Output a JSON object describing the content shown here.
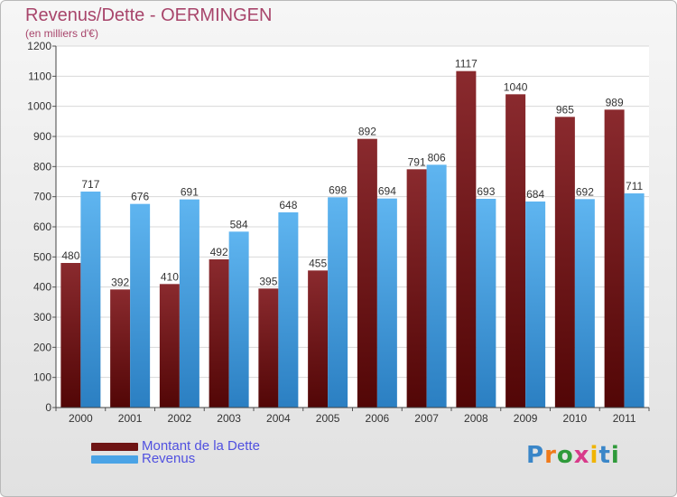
{
  "header": {
    "title": "Revenus/Dette - OERMINGEN",
    "subtitle": "(en milliers d'€)"
  },
  "colors": {
    "dette": "#6e1414",
    "revenus": "#4aa3e6",
    "title": "#a8456b",
    "legend_text": "#5050e0"
  },
  "chart_data": {
    "type": "bar",
    "title": "Revenus/Dette - OERMINGEN",
    "subtitle": "(en milliers d'€)",
    "categories": [
      "2000",
      "2001",
      "2002",
      "2003",
      "2004",
      "2005",
      "2006",
      "2007",
      "2008",
      "2009",
      "2010",
      "2011"
    ],
    "series": [
      {
        "name": "Montant de la Dette",
        "values": [
          480,
          392,
          410,
          492,
          395,
          455,
          892,
          791,
          1117,
          1040,
          965,
          989
        ]
      },
      {
        "name": "Revenus",
        "values": [
          717,
          676,
          691,
          584,
          648,
          698,
          694,
          806,
          693,
          684,
          692,
          711
        ]
      }
    ],
    "ylim": [
      0,
      1200
    ],
    "yticks": [
      0,
      100,
      200,
      300,
      400,
      500,
      600,
      700,
      800,
      900,
      1000,
      1100,
      1200
    ],
    "grid": true,
    "legend_position": "bottom-left"
  },
  "legend": {
    "items": [
      {
        "label": "Montant de la Dette"
      },
      {
        "label": "Revenus"
      }
    ]
  },
  "logo": {
    "letters": [
      "P",
      "r",
      "o",
      "x",
      "i",
      "t",
      "i"
    ],
    "colors": [
      "#3a86c8",
      "#f07a1a",
      "#2f9a3a",
      "#d83a8a",
      "#f0b400",
      "#3a86c8",
      "#2f9a3a"
    ]
  }
}
